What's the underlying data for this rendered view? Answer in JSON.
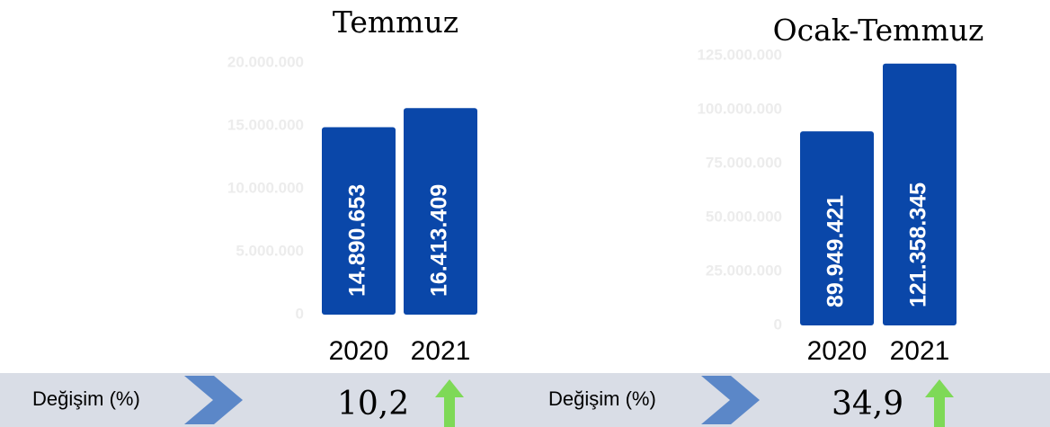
{
  "chart_data": [
    {
      "type": "bar",
      "title": "Temmuz",
      "categories": [
        "2020",
        "2021"
      ],
      "values": [
        14890653,
        16413409
      ],
      "value_labels": [
        "14.890.653",
        "16.413.409"
      ],
      "color": "#0a47a9",
      "ylim": [
        0,
        20000000
      ],
      "yticks": [
        0,
        {
          "value": 5000000,
          "label": "5.000.000"
        },
        {
          "value": 10000000,
          "label": "10.000.000"
        },
        {
          "value": 15000000,
          "label": "15.000.000"
        },
        {
          "value": 20000000,
          "label": "20.000.000"
        }
      ],
      "change_label": "Değişim (%)",
      "change": "10,2"
    },
    {
      "type": "bar",
      "title": "Ocak-Temmuz",
      "categories": [
        "2020",
        "2021"
      ],
      "values": [
        89949421,
        121358345
      ],
      "value_labels": [
        "89.949.421",
        "121.358.345"
      ],
      "color": "#0a47a9",
      "ylim": [
        0,
        125000000
      ],
      "yticks": [
        0,
        {
          "value": 25000000,
          "label": "25.000.000"
        },
        {
          "value": 50000000,
          "label": "50.000.000"
        },
        {
          "value": 75000000,
          "label": "75.000.000"
        },
        {
          "value": 100000000,
          "label": "100.000.000"
        },
        {
          "value": 125000000,
          "label": "125.000.000"
        }
      ],
      "change_label": "Değişim (%)",
      "change": "34,9"
    }
  ]
}
